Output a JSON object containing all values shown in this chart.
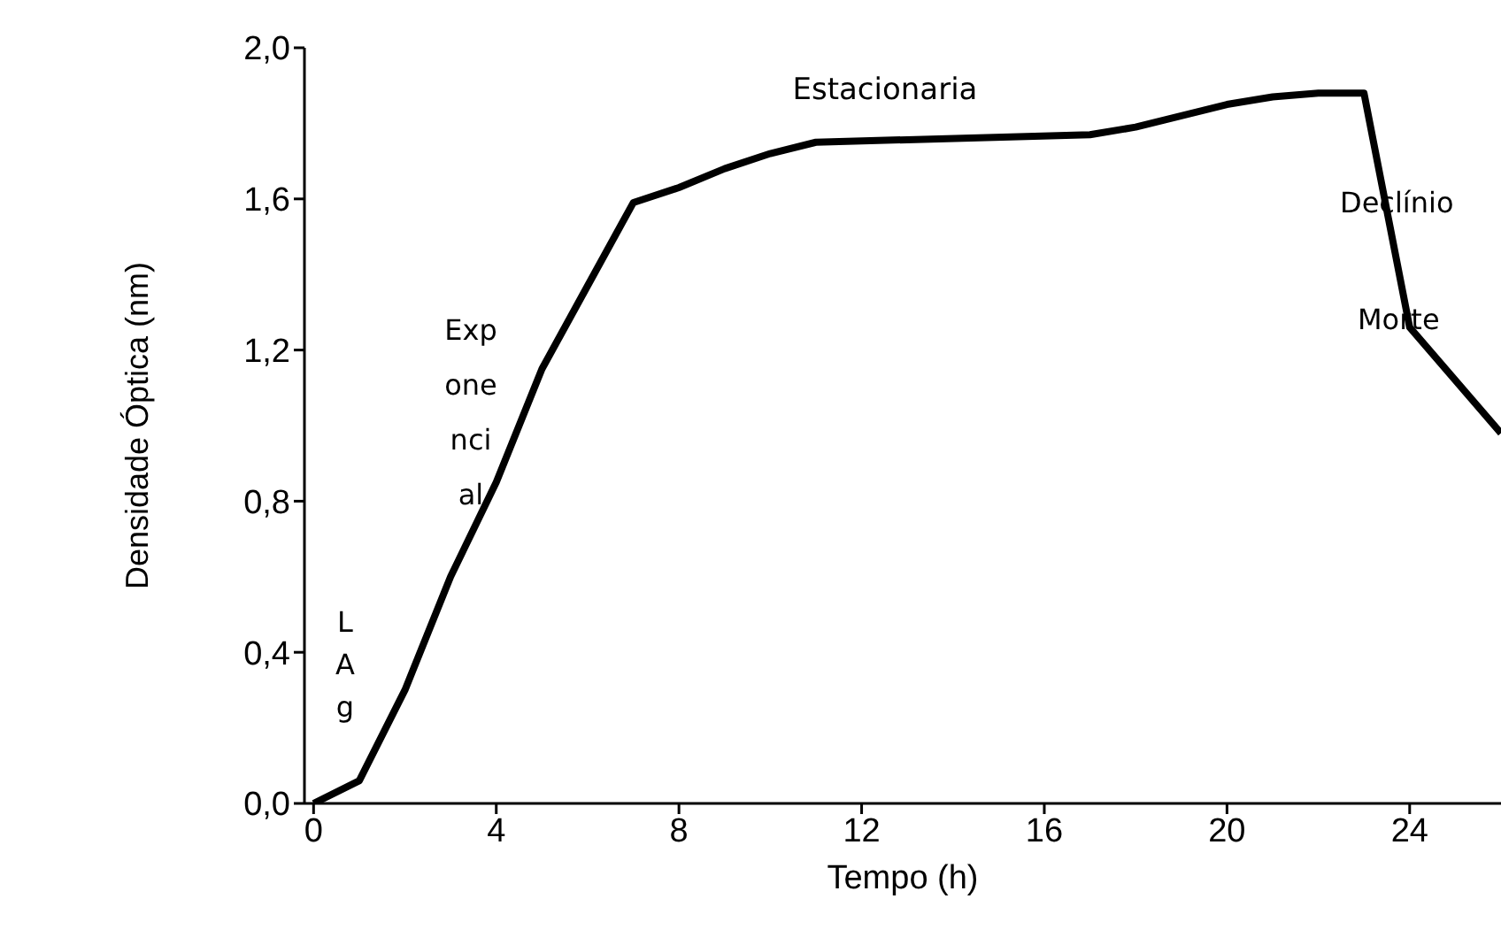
{
  "chart_data": {
    "type": "line",
    "xlabel": "Tempo (h)",
    "ylabel": "Densidade Óptica (nm)",
    "x": [
      0,
      1,
      2,
      3,
      4,
      5,
      6,
      7,
      8,
      9,
      10,
      11,
      17,
      18,
      19,
      20,
      21,
      22,
      23,
      24,
      26
    ],
    "series": [
      {
        "color": "#000000",
        "values": [
          0,
          0.06,
          0.3,
          0.6,
          0.85,
          1.15,
          1.37,
          1.59,
          1.63,
          1.68,
          1.72,
          1.75,
          1.77,
          1.79,
          1.82,
          1.85,
          1.87,
          1.88,
          1.88,
          1.26,
          0.98
        ]
      }
    ],
    "xlim": [
      -0.2,
      26
    ],
    "xticks": [
      0,
      4,
      8,
      12,
      16,
      20,
      24
    ],
    "ylim": [
      0,
      2
    ],
    "yticks": [
      {
        "value": 0,
        "label": "0,0"
      },
      {
        "value": 0.4,
        "label": "0,4"
      },
      {
        "value": 0.8,
        "label": "0,8"
      },
      {
        "value": 1.2,
        "label": "1,2"
      },
      {
        "value": 1.6,
        "label": "1,6"
      },
      {
        "value": 2,
        "label": "2,0"
      }
    ],
    "annotations": [
      "L\nA\ng",
      "Exp\none\nnci\nal",
      "Estacionaria",
      "Declínio",
      "Morte"
    ],
    "marker": "none",
    "line_style": "solid"
  }
}
